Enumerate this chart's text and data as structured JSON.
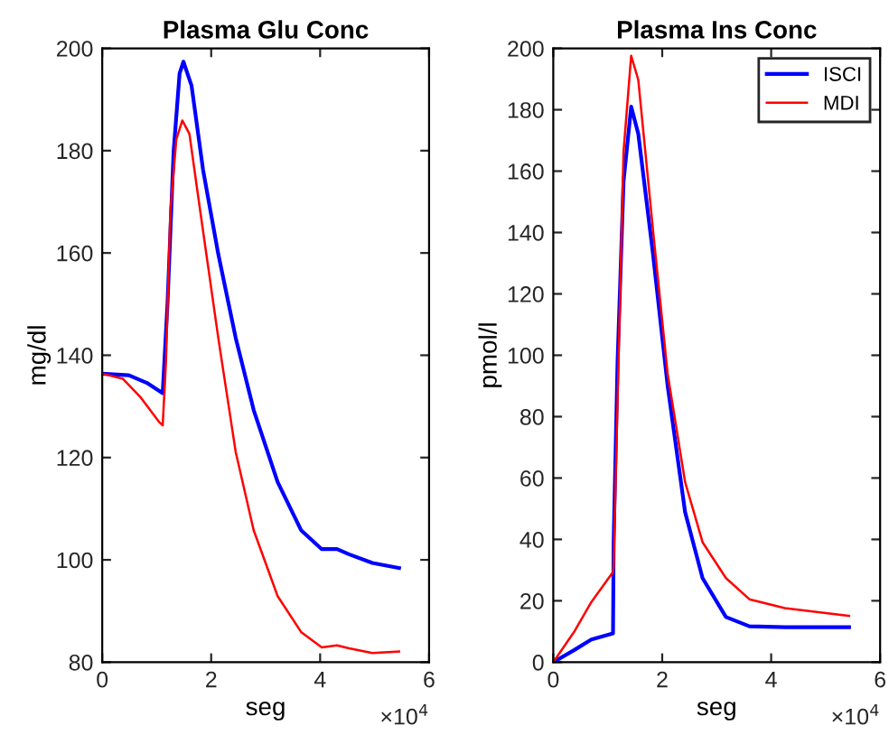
{
  "chart_data": [
    {
      "type": "line",
      "title": "Plasma Glu Conc",
      "xlabel": "seg",
      "ylabel": "mg/dl",
      "annotations": [
        "×10$^{4}$"
      ],
      "xlim": [
        0,
        6
      ],
      "xticks": [
        0,
        2,
        4,
        6
      ],
      "ylim": [
        80,
        200
      ],
      "yticks": [
        80,
        100,
        120,
        140,
        160,
        180,
        200
      ],
      "grid": false,
      "legend": false,
      "series": [
        {
          "color": "#0000ff",
          "x": [
            0,
            0.49,
            0.82,
            1.11,
            1.2,
            1.31,
            1.42,
            1.49,
            1.64,
            1.85,
            2.13,
            2.45,
            2.78,
            3.22,
            3.65,
            4.03,
            4.31,
            4.53,
            4.96,
            5.45
          ],
          "values": [
            136.4,
            136.1,
            134.6,
            132.6,
            150.5,
            179.8,
            195.1,
            197.4,
            192.7,
            176.3,
            159.8,
            143.4,
            129.3,
            115.2,
            105.8,
            102.1,
            102.1,
            101.1,
            99.4,
            98.4
          ]
        },
        {
          "color": "#ff0000",
          "x": [
            0,
            0.38,
            0.71,
            1.04,
            1.11,
            1.17,
            1.25,
            1.36,
            1.47,
            1.6,
            1.8,
            2.13,
            2.45,
            2.78,
            3.22,
            3.65,
            4.03,
            4.31,
            4.53,
            4.96,
            5.45
          ],
          "values": [
            136.4,
            135.4,
            131.7,
            127.0,
            126.3,
            138.7,
            168.1,
            182.2,
            185.9,
            183.3,
            168.1,
            143.4,
            121.1,
            105.8,
            92.9,
            85.9,
            82.9,
            83.3,
            82.7,
            81.8,
            82.1
          ]
        }
      ]
    },
    {
      "type": "line",
      "title": "Plasma Ins Conc",
      "xlabel": "seg",
      "ylabel": "pmol/l",
      "annotations": [
        "×10$^{4}$"
      ],
      "xlim": [
        0,
        6
      ],
      "xticks": [
        0,
        2,
        4,
        6
      ],
      "ylim": [
        0,
        200
      ],
      "yticks": [
        0,
        20,
        40,
        60,
        80,
        100,
        120,
        140,
        160,
        180,
        200
      ],
      "grid": false,
      "legend": "top right",
      "series": [
        {
          "name": "ISCI",
          "color": "#0000ff",
          "x": [
            0,
            0.38,
            0.7,
            1.097,
            1.108,
            1.18,
            1.29,
            1.43,
            1.56,
            1.83,
            2.1,
            2.42,
            2.74,
            3.17,
            3.6,
            4.25,
            5.43
          ],
          "values": [
            0,
            3.9,
            7.4,
            9.4,
            39.1,
            97.8,
            156.6,
            181.0,
            172.2,
            133.1,
            90.0,
            48.9,
            27.4,
            14.7,
            11.7,
            11.4,
            11.4
          ]
        },
        {
          "name": "MDI",
          "color": "#ff0000",
          "x": [
            0,
            0.38,
            0.7,
            1.097,
            1.108,
            1.29,
            1.43,
            1.56,
            1.83,
            2.1,
            2.42,
            2.74,
            3.17,
            3.6,
            4.25,
            5.43
          ],
          "values": [
            0,
            9.8,
            19.6,
            29.4,
            31.3,
            166.3,
            197.6,
            189.8,
            140.9,
            93.9,
            58.7,
            39.1,
            27.4,
            20.5,
            17.6,
            15.1
          ]
        }
      ]
    }
  ]
}
